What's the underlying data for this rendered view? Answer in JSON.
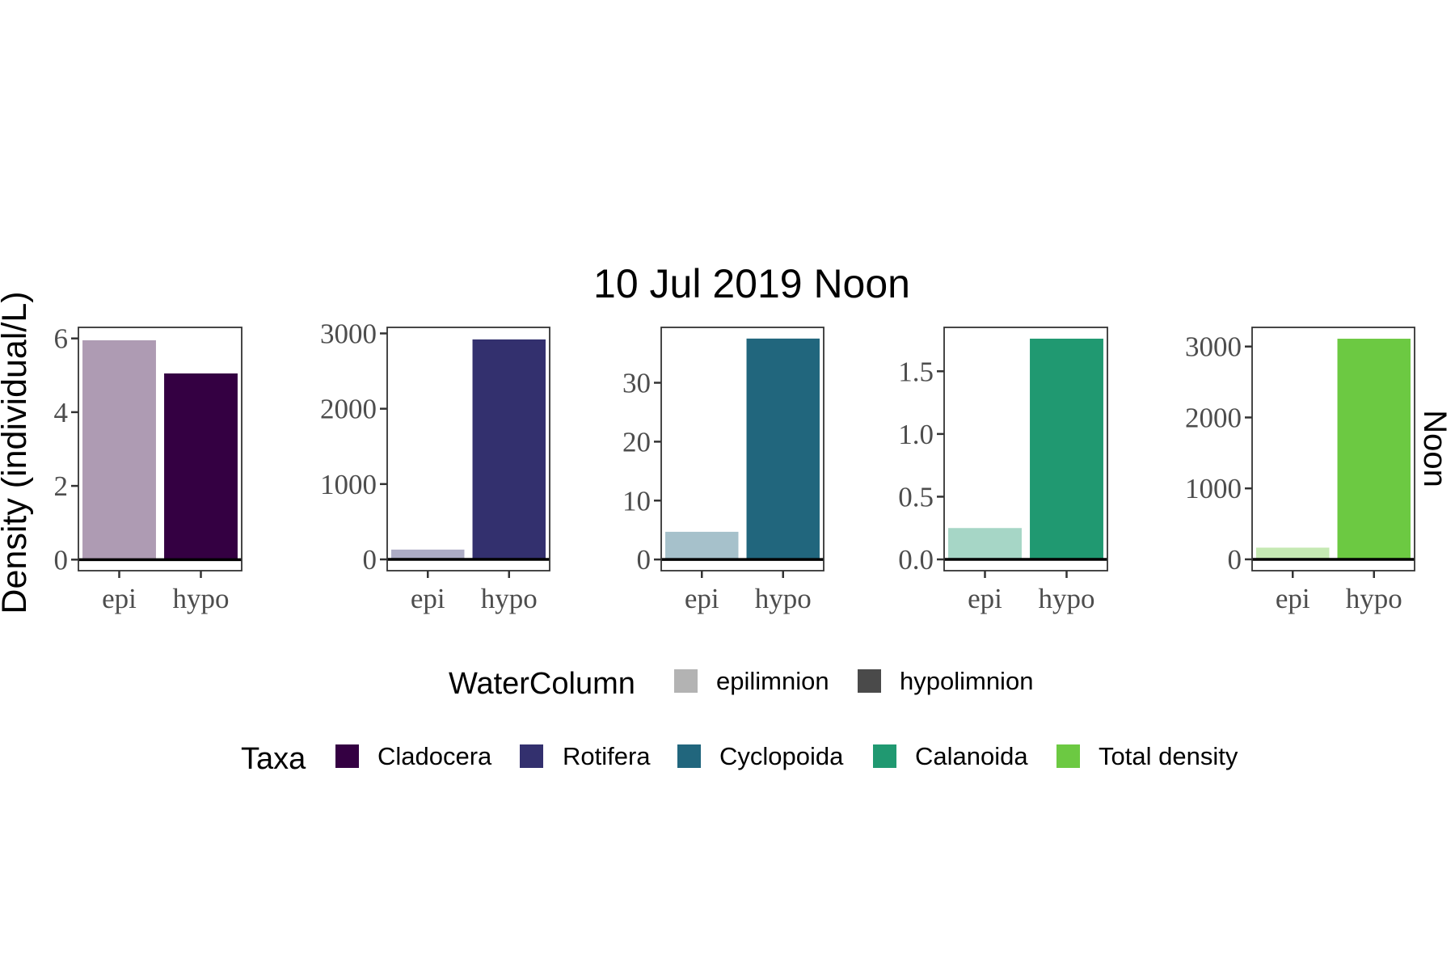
{
  "title": "10 Jul 2019 Noon",
  "ylabel": "Density (individual/L)",
  "strip_label": "Noon",
  "categories": [
    "epi",
    "hypo"
  ],
  "legends": {
    "water_column": {
      "title": "WaterColumn",
      "items": [
        {
          "label": "epilimnion",
          "color": "#b3b3b3"
        },
        {
          "label": "hypolimnion",
          "color": "#4a4a4a"
        }
      ]
    },
    "taxa": {
      "title": "Taxa",
      "items": [
        {
          "label": "Cladocera",
          "color": "#340042"
        },
        {
          "label": "Rotifera",
          "color": "#33306e"
        },
        {
          "label": "Cyclopoida",
          "color": "#21667d"
        },
        {
          "label": "Calanoida",
          "color": "#209971"
        },
        {
          "label": "Total density",
          "color": "#6cc942"
        }
      ]
    }
  },
  "chart_data": [
    {
      "type": "bar",
      "taxon": "Cladocera",
      "categories": [
        "epi",
        "hypo"
      ],
      "values": [
        5.95,
        5.05
      ],
      "ylim": [
        -0.3,
        6.3
      ],
      "yticks": [
        0,
        2,
        4,
        6
      ],
      "ytick_labels": [
        "0",
        "2",
        "4",
        "6"
      ],
      "colors": [
        "#ae9bb3",
        "#340042"
      ]
    },
    {
      "type": "bar",
      "taxon": "Rotifera",
      "categories": [
        "epi",
        "hypo"
      ],
      "values": [
        130,
        2920
      ],
      "ylim": [
        -150,
        3080
      ],
      "yticks": [
        0,
        1000,
        2000,
        3000
      ],
      "ytick_labels": [
        "0",
        "1000",
        "2000",
        "3000"
      ],
      "colors": [
        "#adacc5",
        "#33306e"
      ]
    },
    {
      "type": "bar",
      "taxon": "Cyclopoida",
      "categories": [
        "epi",
        "hypo"
      ],
      "values": [
        4.7,
        37.5
      ],
      "ylim": [
        -1.9,
        39.4
      ],
      "yticks": [
        0,
        10,
        20,
        30
      ],
      "ytick_labels": [
        "0",
        "10",
        "20",
        "30"
      ],
      "colors": [
        "#a6c1cb",
        "#21667d"
      ]
    },
    {
      "type": "bar",
      "taxon": "Calanoida",
      "categories": [
        "epi",
        "hypo"
      ],
      "values": [
        0.25,
        1.76
      ],
      "ylim": [
        -0.09,
        1.85
      ],
      "yticks": [
        0,
        0.5,
        1.0,
        1.5
      ],
      "ytick_labels": [
        "0.0",
        "0.5",
        "1.0",
        "1.5"
      ],
      "colors": [
        "#a6d6c6",
        "#209971"
      ]
    },
    {
      "type": "bar",
      "taxon": "Total density",
      "categories": [
        "epi",
        "hypo"
      ],
      "values": [
        165,
        3110
      ],
      "ylim": [
        -160,
        3270
      ],
      "yticks": [
        0,
        1000,
        2000,
        3000
      ],
      "ytick_labels": [
        "0",
        "1000",
        "2000",
        "3000"
      ],
      "colors": [
        "#c5e9b3",
        "#6cc942"
      ]
    }
  ]
}
